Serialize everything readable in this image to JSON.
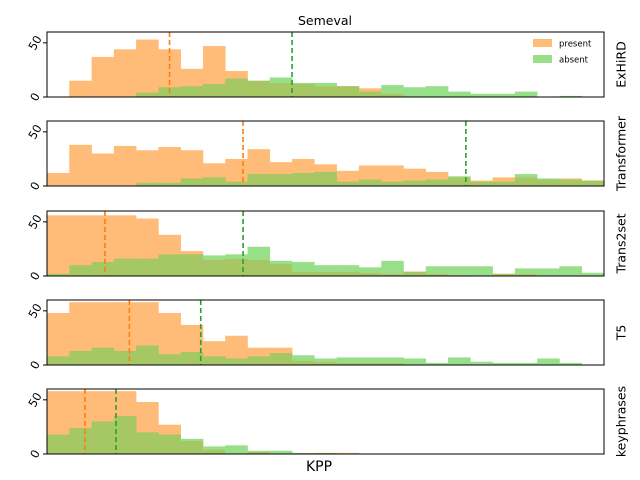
{
  "figure": {
    "title": "Semeval",
    "xlabel": "KPP",
    "legend": {
      "present": "present",
      "absent": "absent",
      "location": "top-right of first panel"
    }
  },
  "colors": {
    "present_fill": "#ffbb78",
    "absent_fill": "#98df8a",
    "overlap_fill": "#a5c864",
    "present_line": "#ff7f0e",
    "absent_line": "#2ca02c"
  },
  "chart_data": [
    {
      "type": "histogram",
      "label": "ExHiRD",
      "ylim": [
        0,
        60
      ],
      "yticks": [
        0,
        50
      ],
      "present_values": [
        0,
        15,
        37,
        44,
        53,
        44,
        26,
        47,
        24,
        15,
        13,
        12,
        10,
        10,
        8,
        3,
        0,
        0,
        0,
        0,
        0,
        0,
        0,
        0,
        0
      ],
      "absent_values": [
        0,
        0,
        0,
        0,
        4,
        9,
        10,
        12,
        17,
        15,
        18,
        13,
        13,
        10,
        5,
        11,
        9,
        10,
        5,
        3,
        3,
        5,
        0,
        1,
        0
      ],
      "present_marker": 5.5,
      "absent_marker": 11.0
    },
    {
      "type": "histogram",
      "label": "Transformer",
      "ylim": [
        0,
        60
      ],
      "yticks": [
        0,
        50
      ],
      "present_values": [
        12,
        38,
        30,
        37,
        33,
        36,
        33,
        21,
        25,
        34,
        22,
        25,
        20,
        14,
        19,
        19,
        16,
        13,
        8,
        5,
        8,
        8,
        6,
        7,
        5
      ],
      "absent_values": [
        0,
        0,
        0,
        0,
        3,
        3,
        7,
        8,
        4,
        11,
        11,
        12,
        13,
        4,
        6,
        4,
        5,
        6,
        9,
        4,
        4,
        11,
        7,
        6,
        5
      ],
      "present_marker": 8.8,
      "absent_marker": 18.8
    },
    {
      "type": "histogram",
      "label": "Trans2set",
      "ylim": [
        0,
        60
      ],
      "yticks": [
        0,
        50
      ],
      "present_values": [
        56,
        56,
        56,
        56,
        53,
        38,
        23,
        15,
        16,
        15,
        11,
        4,
        4,
        4,
        3,
        2,
        4,
        2,
        1,
        0,
        2,
        2,
        0,
        0,
        0
      ],
      "absent_values": [
        2,
        10,
        13,
        16,
        16,
        20,
        20,
        19,
        20,
        27,
        14,
        13,
        10,
        10,
        8,
        14,
        4,
        9,
        9,
        9,
        2,
        7,
        7,
        9,
        3
      ],
      "present_marker": 2.6,
      "absent_marker": 8.8
    },
    {
      "type": "histogram",
      "label": "T5",
      "ylim": [
        0,
        60
      ],
      "yticks": [
        0,
        50
      ],
      "present_values": [
        48,
        58,
        58,
        58,
        58,
        48,
        37,
        22,
        27,
        16,
        16,
        4,
        3,
        2,
        2,
        2,
        0,
        0,
        0,
        0,
        0,
        0,
        0,
        0,
        0
      ],
      "absent_values": [
        8,
        13,
        16,
        13,
        18,
        10,
        12,
        8,
        6,
        8,
        11,
        9,
        6,
        7,
        7,
        7,
        6,
        2,
        7,
        3,
        2,
        2,
        6,
        2,
        0
      ],
      "present_marker": 3.7,
      "absent_marker": 6.9
    },
    {
      "type": "histogram",
      "label": "keyphrases",
      "ylim": [
        0,
        60
      ],
      "yticks": [
        0,
        50
      ],
      "present_values": [
        58,
        58,
        58,
        58,
        48,
        27,
        12,
        4,
        0,
        2,
        0,
        0,
        1,
        1,
        0,
        0,
        0,
        0,
        0,
        0,
        0,
        0,
        0,
        0,
        0
      ],
      "absent_values": [
        18,
        24,
        30,
        35,
        20,
        18,
        14,
        7,
        8,
        3,
        3,
        1,
        1,
        0,
        0,
        0,
        0,
        0,
        0,
        0,
        0,
        0,
        0,
        0,
        0
      ],
      "present_marker": 1.7,
      "absent_marker": 3.1
    }
  ]
}
